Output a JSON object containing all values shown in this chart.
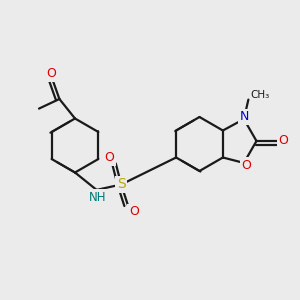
{
  "background_color": "#ebebeb",
  "bond_color": "#1a1a1a",
  "bond_width": 1.6,
  "atom_colors": {
    "O": "#dd0000",
    "N": "#0000cc",
    "S": "#bbaa00",
    "NH": "#007777",
    "C": "#1a1a1a"
  },
  "xlim": [
    0,
    10
  ],
  "ylim": [
    0,
    10
  ],
  "figsize": [
    3.0,
    3.0
  ],
  "dpi": 100
}
